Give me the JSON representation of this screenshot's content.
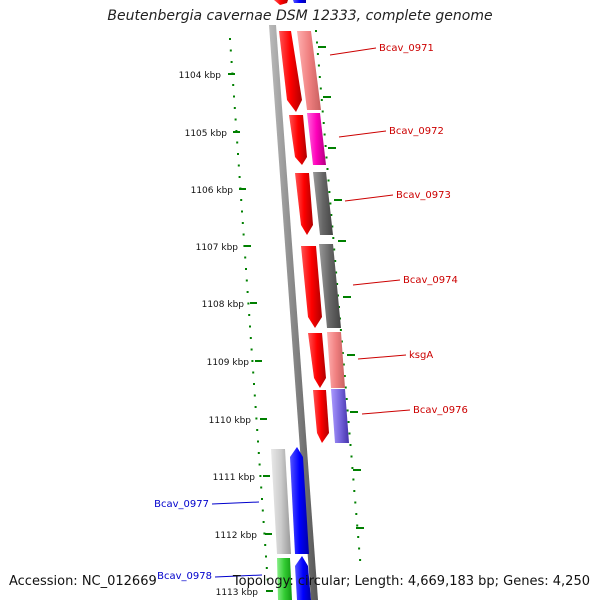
{
  "title": "Beutenbergia cavernae DSM 12333, complete genome",
  "footer": {
    "accession": "Accession: NC_012669",
    "summary": "Topology: circular; Length: 4,669,183 bp; Genes: 4,250"
  },
  "ruler": {
    "ticks": [
      "1104 kbp",
      "1105 kbp",
      "1106 kbp",
      "1107 kbp",
      "1108 kbp",
      "1109 kbp",
      "1110 kbp",
      "1111 kbp",
      "1112 kbp",
      "1113 kbp"
    ]
  },
  "genes": [
    {
      "label": "Bcav_0971",
      "color": "#cc0000"
    },
    {
      "label": "Bcav_0972",
      "color": "#cc0000"
    },
    {
      "label": "Bcav_0973",
      "color": "#cc0000"
    },
    {
      "label": "Bcav_0974",
      "color": "#cc0000"
    },
    {
      "label": "ksgA",
      "color": "#cc0000"
    },
    {
      "label": "Bcav_0976",
      "color": "#cc0000"
    },
    {
      "label": "Bcav_0977",
      "color": "#0000cc"
    },
    {
      "label": "Bcav_0978",
      "color": "#0000cc"
    }
  ],
  "colors": {
    "forward_strand": "#ff0000",
    "reverse_strand": "#0000ff",
    "tick": "#008000",
    "backbone": "#777777"
  }
}
